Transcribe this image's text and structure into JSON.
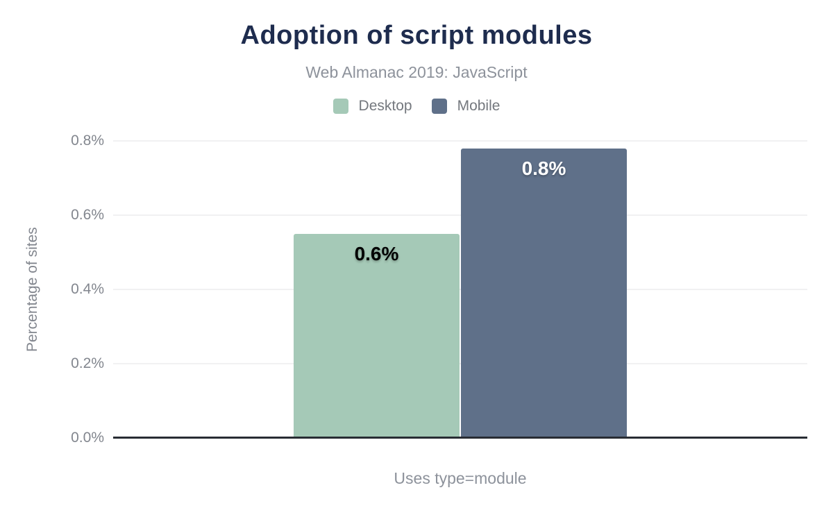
{
  "chart_data": {
    "type": "bar",
    "title": "Adoption of script modules",
    "subtitle": "Web Almanac 2019: JavaScript",
    "xlabel": "Uses type=module",
    "ylabel": "Percentage of sites",
    "categories": [
      "Uses type=module"
    ],
    "series": [
      {
        "name": "Desktop",
        "color": "#a5c9b7",
        "values": [
          0.55
        ],
        "data_label": "0.6%",
        "data_label_color": "#000000"
      },
      {
        "name": "Mobile",
        "color": "#5f7089",
        "values": [
          0.78
        ],
        "data_label": "0.8%",
        "data_label_color": "#ffffff"
      }
    ],
    "ylim": [
      0,
      0.8
    ],
    "yticks": [
      {
        "value": 0.0,
        "label": "0.0%"
      },
      {
        "value": 0.2,
        "label": "0.2%"
      },
      {
        "value": 0.4,
        "label": "0.4%"
      },
      {
        "value": 0.6,
        "label": "0.6%"
      },
      {
        "value": 0.8,
        "label": "0.8%"
      }
    ],
    "grid": true,
    "legend_position": "top"
  },
  "colors": {
    "title": "#1e2c4e",
    "subtitle": "#8d929b",
    "legend_text": "#74787e",
    "axis_text": "#82868e",
    "gridline": "#f1f1f2",
    "baseline": "#282c33",
    "background": "#ffffff"
  }
}
